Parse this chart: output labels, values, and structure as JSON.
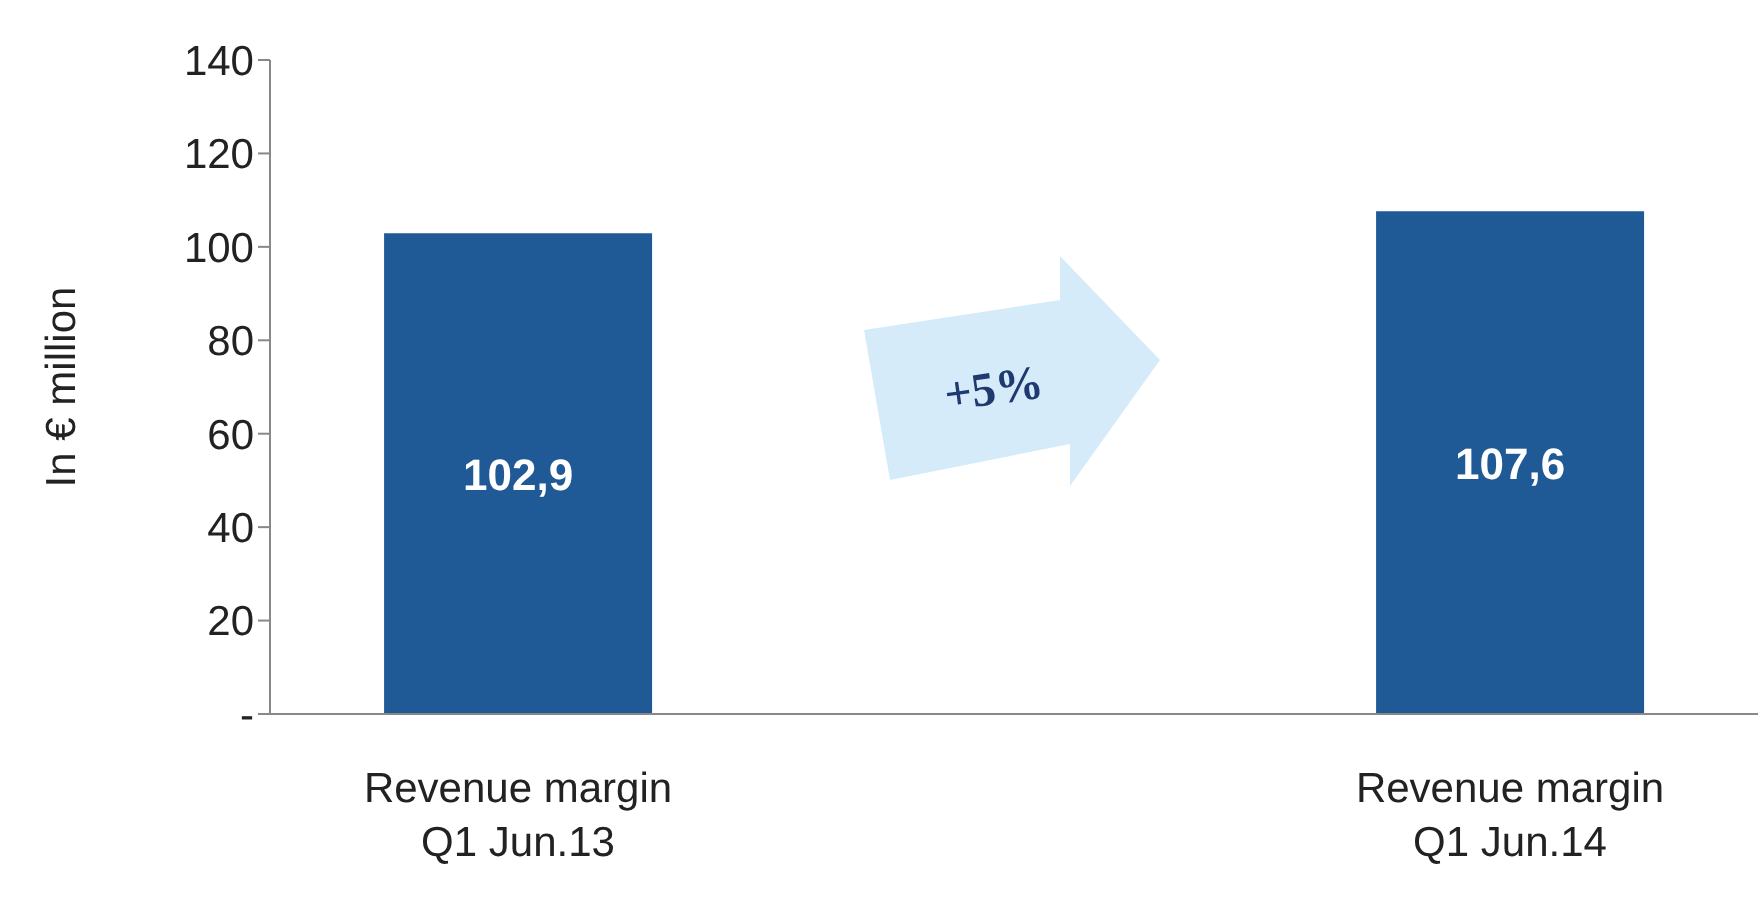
{
  "chart_data": {
    "type": "bar",
    "ylabel": "In € million",
    "categories": [
      "Revenue margin\nQ1 Jun.13",
      null,
      "Revenue margin\nQ1 Jun.14"
    ],
    "values": [
      102.9,
      null,
      107.6
    ],
    "value_labels": [
      "102,9",
      null,
      "107,6"
    ],
    "color": "#1f5a96",
    "ylim": [
      0,
      140
    ],
    "yticks": [
      {
        "value": 0,
        "label": "-"
      },
      20,
      40,
      60,
      80,
      100,
      120,
      140
    ],
    "annotations": [
      "+5%"
    ]
  }
}
